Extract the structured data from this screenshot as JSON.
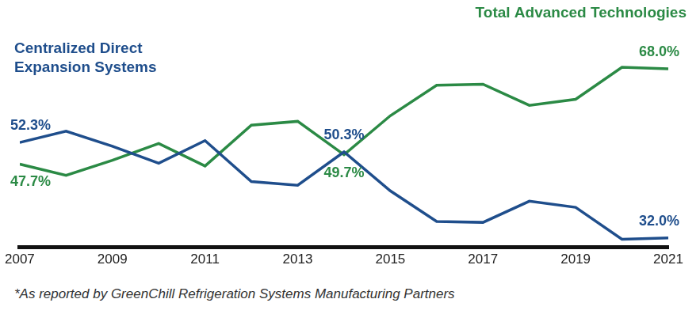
{
  "chart_data": {
    "type": "line",
    "x": [
      2007,
      2008,
      2009,
      2010,
      2011,
      2012,
      2013,
      2014,
      2015,
      2016,
      2017,
      2018,
      2019,
      2020,
      2021
    ],
    "xlim": [
      2007,
      2021
    ],
    "xticks": [
      2007,
      2009,
      2011,
      2013,
      2015,
      2017,
      2019,
      2021
    ],
    "grid": false,
    "tick_labels": "x",
    "data_labels": true,
    "series": [
      {
        "name": "Centralized Direct Expansion Systems",
        "color": "#1f4e8c",
        "values": [
          52.3,
          54.7,
          51.5,
          47.9,
          52.7,
          44.0,
          43.2,
          50.3,
          42.0,
          35.5,
          35.3,
          39.8,
          38.5,
          31.7,
          32.0
        ],
        "value_labels": [
          "52.3%",
          null,
          null,
          null,
          null,
          null,
          null,
          "50.3%",
          null,
          null,
          null,
          null,
          null,
          null,
          "32.0%"
        ]
      },
      {
        "name": "Total Advanced Technologies",
        "color": "#2b8a45",
        "values": [
          47.7,
          45.3,
          48.5,
          52.1,
          47.3,
          56.0,
          56.8,
          49.7,
          58.0,
          64.5,
          64.7,
          60.2,
          61.5,
          68.3,
          68.0
        ],
        "value_labels": [
          "47.7%",
          null,
          null,
          null,
          null,
          null,
          null,
          "49.7%",
          null,
          null,
          null,
          null,
          null,
          null,
          "68.0%"
        ]
      }
    ],
    "footnote": "*As reported by GreenChill Refrigeration Systems Manufacturing Partners"
  }
}
